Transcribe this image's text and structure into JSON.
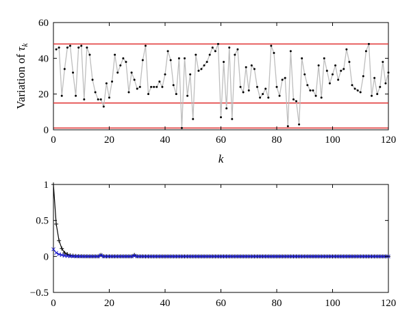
{
  "chart_data": [
    {
      "type": "line",
      "xlabel": "k",
      "ylabel_prefix": "Variation of ",
      "ylabel_symbol": "τ",
      "ylabel_subscript": "k",
      "xlim": [
        0,
        120
      ],
      "ylim": [
        0,
        60
      ],
      "xticks": [
        0,
        20,
        40,
        60,
        80,
        100,
        120
      ],
      "yticks": [
        0,
        20,
        40,
        60
      ],
      "grid": false,
      "colors": {
        "series": "#bdbdbd",
        "marker": "#000000",
        "reference": "#e03030"
      },
      "reference_lines": [
        48,
        15,
        1
      ],
      "series": [
        {
          "x": [
            1,
            2,
            3,
            4,
            5,
            6,
            7,
            8,
            9,
            10,
            11,
            12,
            13,
            14,
            15,
            16,
            17,
            18,
            19,
            20,
            21,
            22,
            23,
            24,
            25,
            26,
            27,
            28,
            29,
            30,
            31,
            32,
            33,
            34,
            35,
            36,
            37,
            38,
            39,
            40,
            41,
            42,
            43,
            44,
            45,
            46,
            47,
            48,
            49,
            50,
            51,
            52,
            53,
            54,
            55,
            56,
            57,
            58,
            59,
            60,
            61,
            62,
            63,
            64,
            65,
            66,
            67,
            68,
            69,
            70,
            71,
            72,
            73,
            74,
            75,
            76,
            77,
            78,
            79,
            80,
            81,
            82,
            83,
            84,
            85,
            86,
            87,
            88,
            89,
            90,
            91,
            92,
            93,
            94,
            95,
            96,
            97,
            98,
            99,
            100,
            101,
            102,
            103,
            104,
            105,
            106,
            107,
            108,
            109,
            110,
            111,
            112,
            113,
            114,
            115,
            116,
            117,
            118,
            119,
            120
          ],
          "y": [
            45,
            46,
            19,
            34,
            46,
            47,
            32,
            19,
            46,
            47,
            17,
            46,
            42,
            28,
            21,
            17,
            17,
            13,
            26,
            18,
            27,
            42,
            32,
            36,
            40,
            38,
            21,
            32,
            28,
            23,
            24,
            39,
            47,
            20,
            24,
            24,
            24,
            27,
            24,
            31,
            44,
            39,
            25,
            20,
            40,
            1,
            40,
            19,
            31,
            6,
            42,
            33,
            34,
            36,
            38,
            42,
            46,
            44,
            48,
            7,
            38,
            12,
            46,
            6,
            42,
            45,
            24,
            21,
            35,
            22,
            36,
            34,
            24,
            18,
            20,
            23,
            18,
            47,
            43,
            24,
            19,
            28,
            29,
            2,
            44,
            17,
            16,
            3,
            40,
            31,
            25,
            22,
            22,
            19,
            36,
            18,
            40,
            33,
            26,
            31,
            36,
            28,
            33,
            34,
            45,
            38,
            25,
            23,
            22,
            21,
            30,
            44,
            48,
            19,
            29,
            20,
            24,
            38,
            26,
            32
          ]
        }
      ]
    },
    {
      "type": "line",
      "xlim": [
        0,
        120
      ],
      "ylim": [
        -0.5,
        1
      ],
      "xticks": [
        0,
        20,
        40,
        60,
        80,
        100,
        120
      ],
      "yticks": [
        -0.5,
        0,
        0.5,
        1
      ],
      "ytick_labels": [
        "−0.5",
        "0",
        "0.5",
        "1"
      ],
      "grid": false,
      "colors": {
        "series_1": "#000000",
        "series_2": "#1a1acc"
      },
      "series": [
        {
          "marker": "+",
          "x": [
            0,
            1,
            2,
            3,
            4,
            5,
            6,
            7,
            8,
            9,
            10,
            11,
            12,
            13,
            14,
            15,
            16,
            17,
            18,
            19,
            20,
            21,
            22,
            23,
            24,
            25,
            26,
            27,
            28,
            29,
            30,
            31,
            32,
            33,
            34,
            35,
            36,
            37,
            38,
            39,
            40,
            41,
            42,
            43,
            44,
            45,
            46,
            47,
            48,
            49,
            50,
            51,
            52,
            53,
            54,
            55,
            56,
            57,
            58,
            59,
            60,
            61,
            62,
            63,
            64,
            65,
            66,
            67,
            68,
            69,
            70,
            71,
            72,
            73,
            74,
            75,
            76,
            77,
            78,
            79,
            80,
            81,
            82,
            83,
            84,
            85,
            86,
            87,
            88,
            89,
            90,
            91,
            92,
            93,
            94,
            95,
            96,
            97,
            98,
            99,
            100,
            101,
            102,
            103,
            104,
            105,
            106,
            107,
            108,
            109,
            110,
            111,
            112,
            113,
            114,
            115,
            116,
            117,
            118,
            119,
            120
          ],
          "y": [
            1.0,
            0.45,
            0.22,
            0.11,
            0.05,
            0.03,
            0.015,
            0.01,
            0.006,
            0.004,
            0.003,
            0.002,
            0.002,
            0.001,
            0.001,
            0.001,
            0.001,
            0.02,
            0.002,
            0.001,
            0.001,
            0.001,
            0.001,
            0.001,
            0.001,
            0.001,
            0.001,
            0.001,
            0.001,
            0.02,
            0.002,
            0.001,
            0.001,
            0,
            0,
            0,
            0,
            0,
            0,
            0,
            0,
            0,
            0,
            0,
            0,
            0,
            0,
            0,
            0,
            0,
            0,
            0,
            0,
            0,
            0,
            0,
            0,
            0,
            0,
            0,
            0,
            0,
            0,
            0,
            0,
            0,
            0,
            0,
            0,
            0,
            0,
            0,
            0,
            0,
            0,
            0,
            0,
            0,
            0,
            0,
            0,
            0,
            0,
            0,
            0,
            0,
            0,
            0,
            0,
            0,
            0,
            0,
            0,
            0,
            0,
            0,
            0,
            0,
            0,
            0,
            0,
            0,
            0,
            0,
            0,
            0,
            0,
            0,
            0,
            0,
            0,
            0,
            0,
            0,
            0,
            0,
            0,
            0,
            0,
            0,
            0
          ]
        },
        {
          "marker": "x",
          "x": [
            0,
            1,
            2,
            3,
            4,
            5,
            6,
            7,
            8,
            9,
            10,
            11,
            12,
            13,
            14,
            15,
            16,
            17,
            18,
            19,
            20,
            21,
            22,
            23,
            24,
            25,
            26,
            27,
            28,
            29,
            30,
            31,
            32,
            33,
            34,
            35,
            36,
            37,
            38,
            39,
            40,
            41,
            42,
            43,
            44,
            45,
            46,
            47,
            48,
            49,
            50,
            51,
            52,
            53,
            54,
            55,
            56,
            57,
            58,
            59,
            60,
            61,
            62,
            63,
            64,
            65,
            66,
            67,
            68,
            69,
            70,
            71,
            72,
            73,
            74,
            75,
            76,
            77,
            78,
            79,
            80,
            81,
            82,
            83,
            84,
            85,
            86,
            87,
            88,
            89,
            90,
            91,
            92,
            93,
            94,
            95,
            96,
            97,
            98,
            99,
            100,
            101,
            102,
            103,
            104,
            105,
            106,
            107,
            108,
            109,
            110,
            111,
            112,
            113,
            114,
            115,
            116,
            117,
            118,
            119,
            120
          ],
          "y": [
            0.1,
            0.05,
            0.03,
            0.02,
            0.01,
            0.005,
            0.003,
            0.002,
            0.001,
            0.001,
            0.001,
            0,
            0,
            0,
            0,
            0,
            0,
            0.015,
            0,
            0,
            0,
            0,
            0,
            0,
            0,
            0,
            0,
            0,
            0,
            0.01,
            0,
            0,
            0,
            0,
            0,
            0,
            0,
            0,
            0,
            0,
            0,
            0,
            0,
            0,
            0,
            0,
            0,
            0,
            0,
            0,
            0,
            0,
            0,
            0,
            0,
            0,
            0,
            0,
            0,
            0,
            0,
            0,
            0,
            0,
            0,
            0,
            0,
            0,
            0,
            0,
            0,
            0,
            0,
            0,
            0,
            0,
            0,
            0,
            0,
            0,
            0,
            0,
            0,
            0,
            0,
            0,
            0,
            0,
            0,
            0,
            0,
            0,
            0,
            0,
            0,
            0,
            0,
            0,
            0,
            0,
            0,
            0,
            0,
            0,
            0,
            0,
            0,
            0,
            0,
            0,
            0,
            0,
            0,
            0,
            0,
            0,
            0,
            0,
            0,
            0,
            0
          ]
        }
      ]
    }
  ]
}
